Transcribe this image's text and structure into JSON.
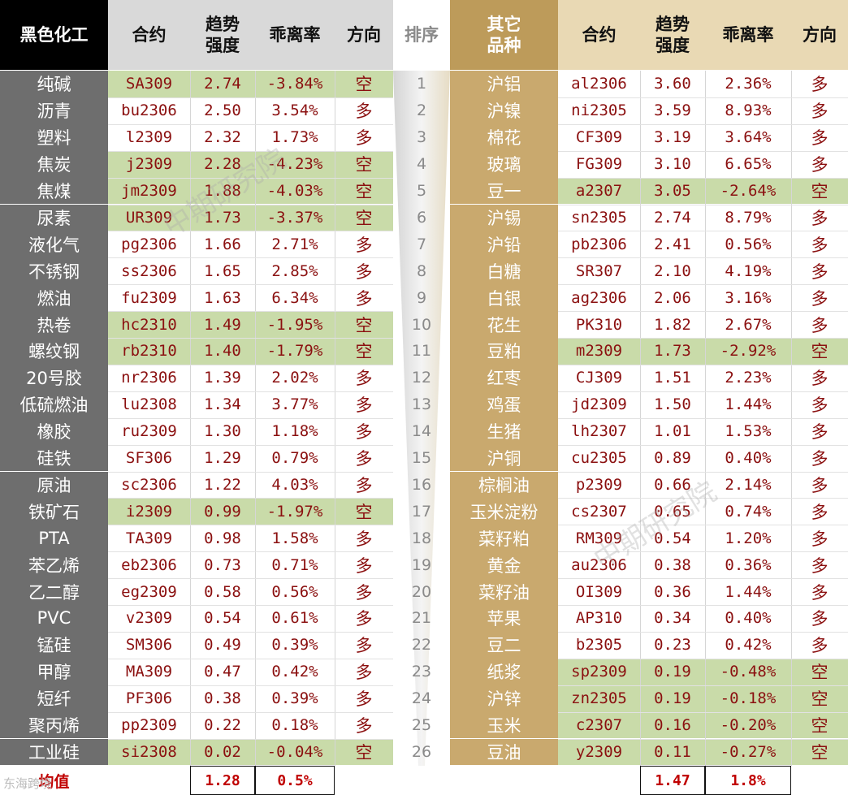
{
  "headers": {
    "left_category": "黑色化工",
    "contract": "合约",
    "trend_line1": "趋势",
    "trend_line2": "强度",
    "deviation": "乖离率",
    "direction": "方向",
    "rank": "排序",
    "right_category_line1": "其它",
    "right_category_line2": "品种"
  },
  "rows": [
    {
      "rank": "1",
      "left": {
        "name": "纯碱",
        "contract": "SA309",
        "trend": "2.74",
        "dev": "-3.84%",
        "dir": "空"
      },
      "right": {
        "name": "沪铝",
        "contract": "al2306",
        "trend": "3.60",
        "dev": "2.36%",
        "dir": "多"
      }
    },
    {
      "rank": "2",
      "left": {
        "name": "沥青",
        "contract": "bu2306",
        "trend": "2.50",
        "dev": "3.54%",
        "dir": "多"
      },
      "right": {
        "name": "沪镍",
        "contract": "ni2305",
        "trend": "3.59",
        "dev": "8.93%",
        "dir": "多"
      }
    },
    {
      "rank": "3",
      "left": {
        "name": "塑料",
        "contract": "l2309",
        "trend": "2.32",
        "dev": "1.73%",
        "dir": "多"
      },
      "right": {
        "name": "棉花",
        "contract": "CF309",
        "trend": "3.19",
        "dev": "3.64%",
        "dir": "多"
      }
    },
    {
      "rank": "4",
      "left": {
        "name": "焦炭",
        "contract": "j2309",
        "trend": "2.28",
        "dev": "-4.23%",
        "dir": "空"
      },
      "right": {
        "name": "玻璃",
        "contract": "FG309",
        "trend": "3.10",
        "dev": "6.65%",
        "dir": "多"
      }
    },
    {
      "rank": "5",
      "left": {
        "name": "焦煤",
        "contract": "jm2309",
        "trend": "1.88",
        "dev": "-4.03%",
        "dir": "空"
      },
      "right": {
        "name": "豆一",
        "contract": "a2307",
        "trend": "3.05",
        "dev": "-2.64%",
        "dir": "空"
      }
    },
    {
      "rank": "6",
      "left": {
        "name": "尿素",
        "contract": "UR309",
        "trend": "1.73",
        "dev": "-3.37%",
        "dir": "空"
      },
      "right": {
        "name": "沪锡",
        "contract": "sn2305",
        "trend": "2.74",
        "dev": "8.79%",
        "dir": "多"
      }
    },
    {
      "rank": "7",
      "left": {
        "name": "液化气",
        "contract": "pg2306",
        "trend": "1.66",
        "dev": "2.71%",
        "dir": "多"
      },
      "right": {
        "name": "沪铅",
        "contract": "pb2306",
        "trend": "2.41",
        "dev": "0.56%",
        "dir": "多"
      }
    },
    {
      "rank": "8",
      "left": {
        "name": "不锈钢",
        "contract": "ss2306",
        "trend": "1.65",
        "dev": "2.85%",
        "dir": "多"
      },
      "right": {
        "name": "白糖",
        "contract": "SR307",
        "trend": "2.10",
        "dev": "4.19%",
        "dir": "多"
      }
    },
    {
      "rank": "9",
      "left": {
        "name": "燃油",
        "contract": "fu2309",
        "trend": "1.63",
        "dev": "6.34%",
        "dir": "多"
      },
      "right": {
        "name": "白银",
        "contract": "ag2306",
        "trend": "2.06",
        "dev": "3.16%",
        "dir": "多"
      }
    },
    {
      "rank": "10",
      "left": {
        "name": "热卷",
        "contract": "hc2310",
        "trend": "1.49",
        "dev": "-1.95%",
        "dir": "空"
      },
      "right": {
        "name": "花生",
        "contract": "PK310",
        "trend": "1.82",
        "dev": "2.67%",
        "dir": "多"
      }
    },
    {
      "rank": "11",
      "left": {
        "name": "螺纹钢",
        "contract": "rb2310",
        "trend": "1.40",
        "dev": "-1.79%",
        "dir": "空"
      },
      "right": {
        "name": "豆粕",
        "contract": "m2309",
        "trend": "1.73",
        "dev": "-2.92%",
        "dir": "空"
      }
    },
    {
      "rank": "12",
      "left": {
        "name": "20号胶",
        "contract": "nr2306",
        "trend": "1.39",
        "dev": "2.02%",
        "dir": "多"
      },
      "right": {
        "name": "红枣",
        "contract": "CJ309",
        "trend": "1.51",
        "dev": "2.23%",
        "dir": "多"
      }
    },
    {
      "rank": "13",
      "left": {
        "name": "低硫燃油",
        "contract": "lu2308",
        "trend": "1.34",
        "dev": "3.77%",
        "dir": "多"
      },
      "right": {
        "name": "鸡蛋",
        "contract": "jd2309",
        "trend": "1.50",
        "dev": "1.44%",
        "dir": "多"
      }
    },
    {
      "rank": "14",
      "left": {
        "name": "橡胶",
        "contract": "ru2309",
        "trend": "1.30",
        "dev": "1.18%",
        "dir": "多"
      },
      "right": {
        "name": "生猪",
        "contract": "lh2307",
        "trend": "1.01",
        "dev": "1.53%",
        "dir": "多"
      }
    },
    {
      "rank": "15",
      "left": {
        "name": "硅铁",
        "contract": "SF306",
        "trend": "1.29",
        "dev": "0.79%",
        "dir": "多"
      },
      "right": {
        "name": "沪铜",
        "contract": "cu2305",
        "trend": "0.89",
        "dev": "0.40%",
        "dir": "多"
      }
    },
    {
      "rank": "16",
      "left": {
        "name": "原油",
        "contract": "sc2306",
        "trend": "1.22",
        "dev": "4.03%",
        "dir": "多"
      },
      "right": {
        "name": "棕榈油",
        "contract": "p2309",
        "trend": "0.66",
        "dev": "2.14%",
        "dir": "多"
      }
    },
    {
      "rank": "17",
      "left": {
        "name": "铁矿石",
        "contract": "i2309",
        "trend": "0.99",
        "dev": "-1.97%",
        "dir": "空"
      },
      "right": {
        "name": "玉米淀粉",
        "contract": "cs2307",
        "trend": "0.65",
        "dev": "0.74%",
        "dir": "多"
      }
    },
    {
      "rank": "18",
      "left": {
        "name": "PTA",
        "contract": "TA309",
        "trend": "0.98",
        "dev": "1.58%",
        "dir": "多"
      },
      "right": {
        "name": "菜籽粕",
        "contract": "RM309",
        "trend": "0.54",
        "dev": "1.20%",
        "dir": "多"
      }
    },
    {
      "rank": "19",
      "left": {
        "name": "苯乙烯",
        "contract": "eb2306",
        "trend": "0.73",
        "dev": "0.71%",
        "dir": "多"
      },
      "right": {
        "name": "黄金",
        "contract": "au2306",
        "trend": "0.38",
        "dev": "0.36%",
        "dir": "多"
      }
    },
    {
      "rank": "20",
      "left": {
        "name": "乙二醇",
        "contract": "eg2309",
        "trend": "0.58",
        "dev": "0.56%",
        "dir": "多"
      },
      "right": {
        "name": "菜籽油",
        "contract": "OI309",
        "trend": "0.36",
        "dev": "1.44%",
        "dir": "多"
      }
    },
    {
      "rank": "21",
      "left": {
        "name": "PVC",
        "contract": "v2309",
        "trend": "0.54",
        "dev": "0.61%",
        "dir": "多"
      },
      "right": {
        "name": "苹果",
        "contract": "AP310",
        "trend": "0.34",
        "dev": "0.40%",
        "dir": "多"
      }
    },
    {
      "rank": "22",
      "left": {
        "name": "锰硅",
        "contract": "SM306",
        "trend": "0.49",
        "dev": "0.39%",
        "dir": "多"
      },
      "right": {
        "name": "豆二",
        "contract": "b2305",
        "trend": "0.23",
        "dev": "0.42%",
        "dir": "多"
      }
    },
    {
      "rank": "23",
      "left": {
        "name": "甲醇",
        "contract": "MA309",
        "trend": "0.47",
        "dev": "0.42%",
        "dir": "多"
      },
      "right": {
        "name": "纸浆",
        "contract": "sp2309",
        "trend": "0.19",
        "dev": "-0.48%",
        "dir": "空"
      }
    },
    {
      "rank": "24",
      "left": {
        "name": "短纤",
        "contract": "PF306",
        "trend": "0.38",
        "dev": "0.39%",
        "dir": "多"
      },
      "right": {
        "name": "沪锌",
        "contract": "zn2305",
        "trend": "0.19",
        "dev": "-0.18%",
        "dir": "空"
      }
    },
    {
      "rank": "25",
      "left": {
        "name": "聚丙烯",
        "contract": "pp2309",
        "trend": "0.22",
        "dev": "0.18%",
        "dir": "多"
      },
      "right": {
        "name": "玉米",
        "contract": "c2307",
        "trend": "0.16",
        "dev": "-0.20%",
        "dir": "空"
      }
    },
    {
      "rank": "26",
      "left": {
        "name": "工业硅",
        "contract": "si2308",
        "trend": "0.02",
        "dev": "-0.04%",
        "dir": "空"
      },
      "right": {
        "name": "豆油",
        "contract": "y2309",
        "trend": "0.11",
        "dev": "-0.27%",
        "dir": "空"
      }
    }
  ],
  "footer": {
    "label": "均值",
    "left_trend_avg": "1.28",
    "left_dev_avg": "0.5%",
    "right_trend_avg": "1.47",
    "right_dev_avg": "1.8%"
  },
  "watermark": "中期研究院",
  "corner_logo": "东海跨境",
  "colors": {
    "short_highlight": "#c9dba9",
    "left_name_bg": "#6e6e6e",
    "right_name_bg": "#c9a96e",
    "header_left_bg": "#000000",
    "header_gray_bg": "#d9d9d9",
    "header_gold_bg": "#bd9b5a",
    "header_cream_bg": "#e9d9b4",
    "value_text": "#8b1010",
    "average_text": "#c00000"
  }
}
